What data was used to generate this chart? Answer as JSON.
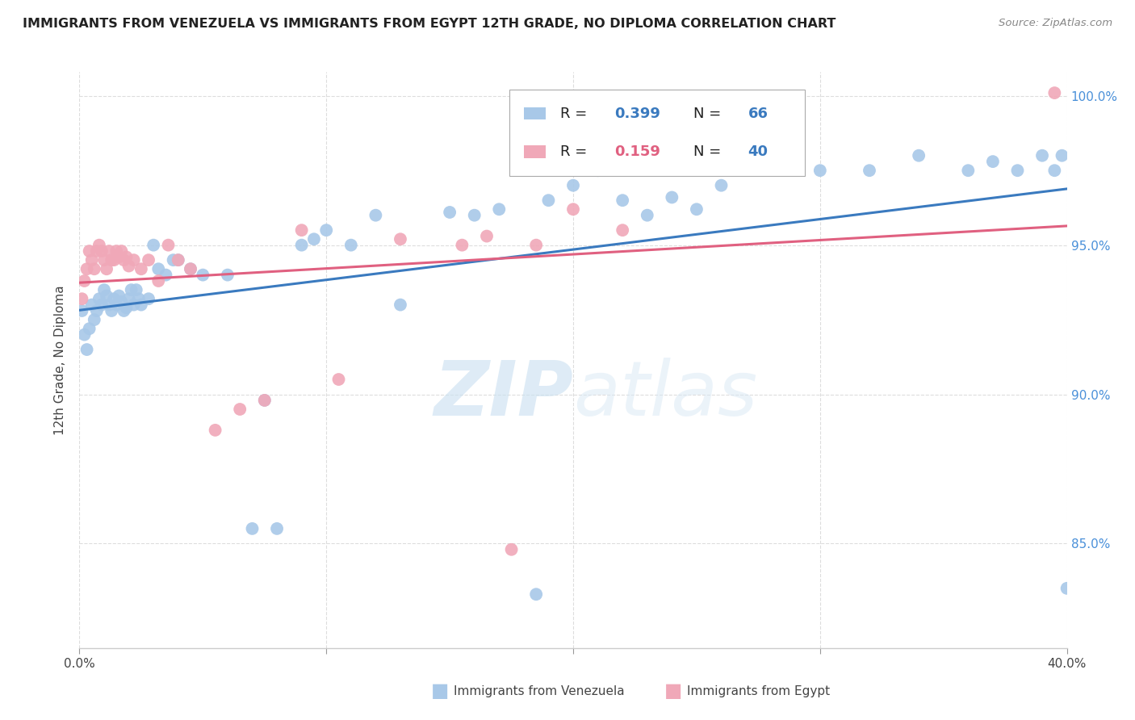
{
  "title": "IMMIGRANTS FROM VENEZUELA VS IMMIGRANTS FROM EGYPT 12TH GRADE, NO DIPLOMA CORRELATION CHART",
  "source": "Source: ZipAtlas.com",
  "ylabel": "12th Grade, No Diploma",
  "xmin": 0.0,
  "xmax": 0.4,
  "ymin": 0.815,
  "ymax": 1.008,
  "yticks": [
    0.85,
    0.9,
    0.95,
    1.0
  ],
  "ytick_labels": [
    "85.0%",
    "90.0%",
    "95.0%",
    "100.0%"
  ],
  "xticks": [
    0.0,
    0.1,
    0.2,
    0.3,
    0.4
  ],
  "xtick_labels": [
    "0.0%",
    "",
    "",
    "",
    "40.0%"
  ],
  "color_blue": "#a8c8e8",
  "color_pink": "#f0a8b8",
  "line_color_blue": "#3a7abf",
  "line_color_pink": "#e06080",
  "watermark_zip": "ZIP",
  "watermark_atlas": "atlas",
  "venezuela_x": [
    0.001,
    0.002,
    0.003,
    0.004,
    0.005,
    0.006,
    0.007,
    0.008,
    0.009,
    0.01,
    0.011,
    0.012,
    0.013,
    0.014,
    0.015,
    0.016,
    0.017,
    0.018,
    0.019,
    0.02,
    0.021,
    0.022,
    0.023,
    0.024,
    0.025,
    0.028,
    0.03,
    0.032,
    0.035,
    0.038,
    0.04,
    0.045,
    0.05,
    0.06,
    0.07,
    0.075,
    0.08,
    0.09,
    0.095,
    0.1,
    0.11,
    0.12,
    0.13,
    0.15,
    0.16,
    0.17,
    0.185,
    0.19,
    0.2,
    0.21,
    0.22,
    0.23,
    0.24,
    0.25,
    0.26,
    0.28,
    0.3,
    0.32,
    0.34,
    0.36,
    0.37,
    0.38,
    0.39,
    0.395,
    0.398,
    0.4
  ],
  "venezuela_y": [
    0.928,
    0.92,
    0.915,
    0.922,
    0.93,
    0.925,
    0.928,
    0.932,
    0.93,
    0.935,
    0.933,
    0.93,
    0.928,
    0.932,
    0.93,
    0.933,
    0.931,
    0.928,
    0.929,
    0.932,
    0.935,
    0.93,
    0.935,
    0.932,
    0.93,
    0.932,
    0.95,
    0.942,
    0.94,
    0.945,
    0.945,
    0.942,
    0.94,
    0.94,
    0.855,
    0.898,
    0.855,
    0.95,
    0.952,
    0.955,
    0.95,
    0.96,
    0.93,
    0.961,
    0.96,
    0.962,
    0.833,
    0.965,
    0.97,
    0.975,
    0.965,
    0.96,
    0.966,
    0.962,
    0.97,
    0.978,
    0.975,
    0.975,
    0.98,
    0.975,
    0.978,
    0.975,
    0.98,
    0.975,
    0.98,
    0.835
  ],
  "egypt_x": [
    0.001,
    0.002,
    0.003,
    0.004,
    0.005,
    0.006,
    0.007,
    0.008,
    0.009,
    0.01,
    0.011,
    0.012,
    0.013,
    0.014,
    0.015,
    0.016,
    0.017,
    0.018,
    0.019,
    0.02,
    0.022,
    0.025,
    0.028,
    0.032,
    0.036,
    0.04,
    0.045,
    0.055,
    0.065,
    0.075,
    0.09,
    0.105,
    0.13,
    0.155,
    0.165,
    0.175,
    0.185,
    0.2,
    0.22,
    0.395
  ],
  "egypt_y": [
    0.932,
    0.938,
    0.942,
    0.948,
    0.945,
    0.942,
    0.948,
    0.95,
    0.948,
    0.945,
    0.942,
    0.948,
    0.945,
    0.945,
    0.948,
    0.946,
    0.948,
    0.945,
    0.946,
    0.943,
    0.945,
    0.942,
    0.945,
    0.938,
    0.95,
    0.945,
    0.942,
    0.888,
    0.895,
    0.898,
    0.955,
    0.905,
    0.952,
    0.95,
    0.953,
    0.848,
    0.95,
    0.962,
    0.955,
    1.001
  ]
}
